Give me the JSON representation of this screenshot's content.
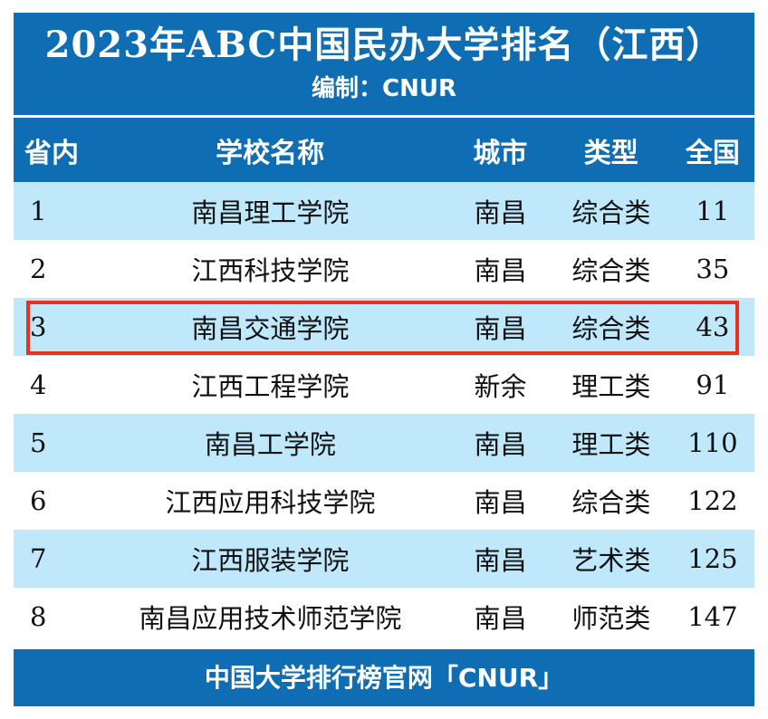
{
  "title": "2023年ABC中国民办大学排名（江西）",
  "subtitle": "编制：CNUR",
  "columns": [
    "省内",
    "学校名称",
    "城市",
    "类型",
    "全国"
  ],
  "rows": [
    {
      "rank": "1",
      "name": "南昌理工学院",
      "city": "南昌",
      "type": "综合类",
      "national": "11"
    },
    {
      "rank": "2",
      "name": "江西科技学院",
      "city": "南昌",
      "type": "综合类",
      "national": "35"
    },
    {
      "rank": "3",
      "name": "南昌交通学院",
      "city": "南昌",
      "type": "综合类",
      "national": "43"
    },
    {
      "rank": "4",
      "name": "江西工程学院",
      "city": "新余",
      "type": "理工类",
      "national": "91"
    },
    {
      "rank": "5",
      "name": "南昌工学院",
      "city": "南昌",
      "type": "理工类",
      "national": "110"
    },
    {
      "rank": "6",
      "name": "江西应用科技学院",
      "city": "南昌",
      "type": "综合类",
      "national": "122"
    },
    {
      "rank": "7",
      "name": "江西服装学院",
      "city": "南昌",
      "type": "艺术类",
      "national": "125"
    },
    {
      "rank": "8",
      "name": "南昌应用技术师范学院",
      "city": "南昌",
      "type": "师范类",
      "national": "147"
    }
  ],
  "footer": "中国大学排行榜官网「CNUR」",
  "colors": {
    "header_bg": "#0f6db3",
    "row_shaded": "#bfe8fb",
    "highlight_border": "#e8311f"
  },
  "highlighted_rank": "3"
}
